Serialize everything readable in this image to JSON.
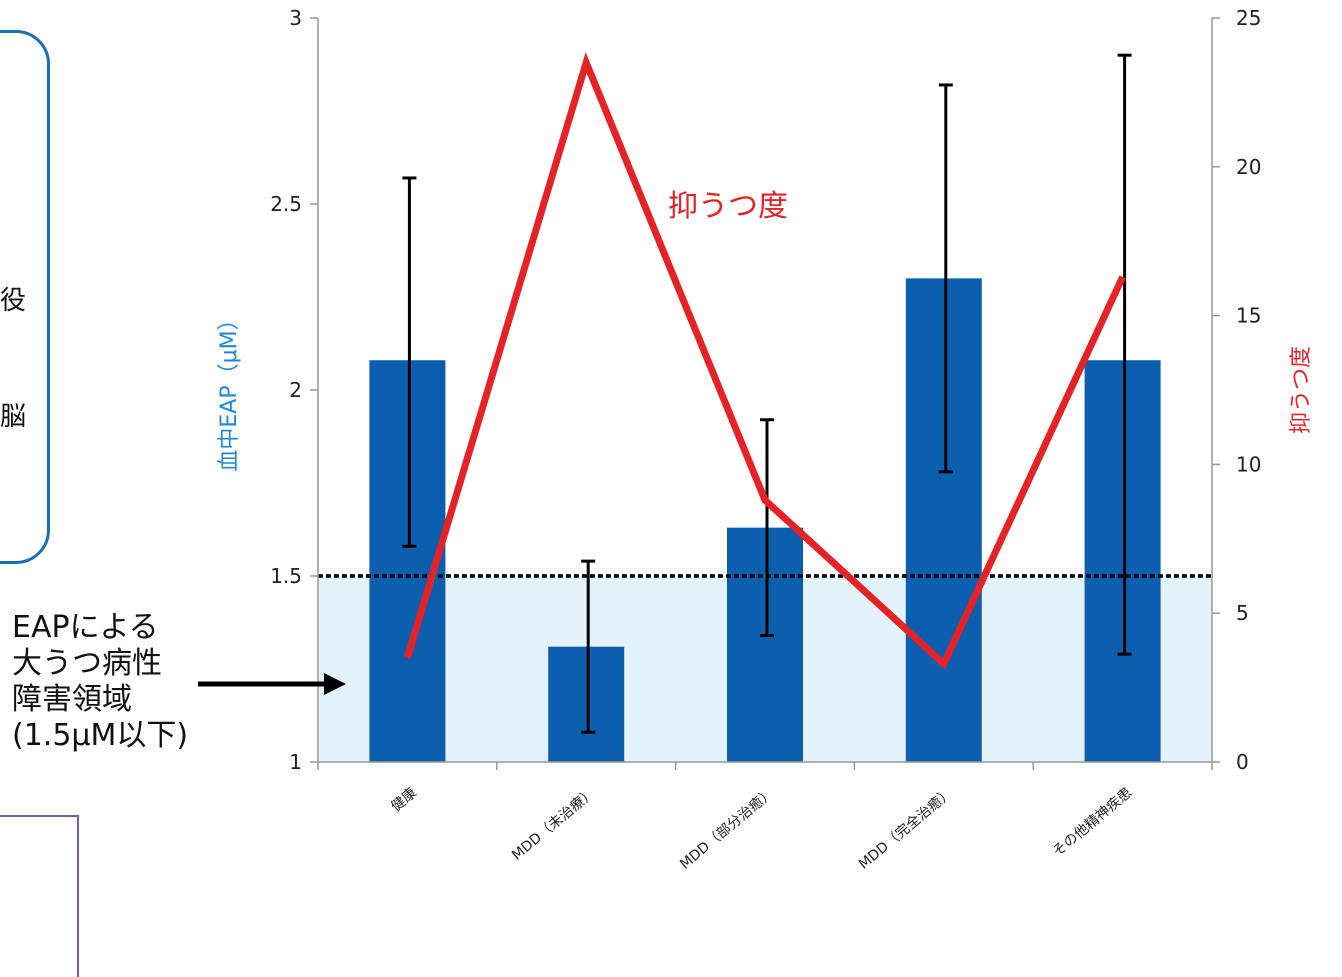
{
  "left_box": {
    "chars": [
      "役",
      "脳"
    ]
  },
  "annotation": {
    "lines": [
      "EAPによる",
      "大うつ病性",
      "障害領域",
      "(1.5μM以下)"
    ]
  },
  "colors": {
    "bar": "#0b5fae",
    "line": "#e52326",
    "threshold_fill": "#e3f2fb",
    "left_label": "#1f8ad6",
    "right_label": "#e52326"
  },
  "chart_data": {
    "type": "bar",
    "categories": [
      "健康",
      "MDD（未治療）",
      "MDD（部分治癒）",
      "MDD（完全治癒）",
      "その他精神疾患"
    ],
    "series": [
      {
        "values": [
          2.08,
          1.31,
          1.63,
          2.3,
          2.08
        ],
        "error_low": [
          1.58,
          1.08,
          1.34,
          1.78,
          1.29
        ],
        "error_high": [
          2.57,
          1.54,
          1.92,
          2.82,
          2.9
        ],
        "axis": "left"
      },
      {
        "name": "抑うつ度",
        "type": "line",
        "values": [
          3.5,
          23.5,
          8.8,
          3.3,
          16.3
        ],
        "axis": "right"
      }
    ],
    "ylabel": "血中EAP（μM）",
    "ylabel_right": "抑うつ度",
    "ylim": [
      1,
      3
    ],
    "ylim_right": [
      0,
      25
    ],
    "yticks": [
      "1",
      "1.5",
      "2",
      "2.5",
      "3"
    ],
    "yticks_right": [
      "0",
      "5",
      "10",
      "15",
      "20",
      "25"
    ],
    "threshold": 1.5,
    "line_label": "抑うつ度"
  }
}
